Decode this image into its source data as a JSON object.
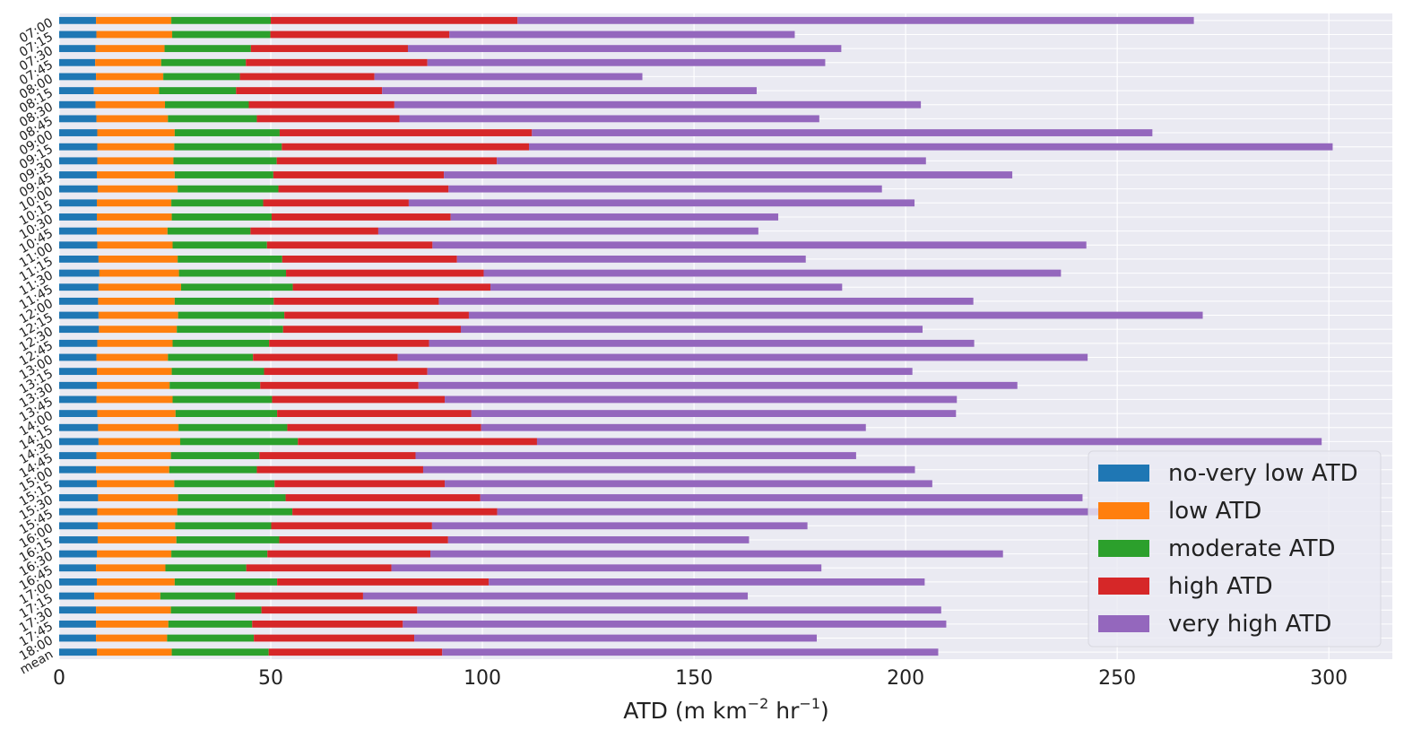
{
  "chart_data": {
    "type": "bar",
    "orientation": "horizontal",
    "stacked": true,
    "xlabel_main": "ATD (m km",
    "xlabel_sup1": "−2",
    "xlabel_mid": " hr",
    "xlabel_sup2": "−1",
    "xlabel_end": ")",
    "xlim": [
      0,
      315
    ],
    "xticks": [
      0,
      50,
      100,
      150,
      200,
      250,
      300
    ],
    "grid": true,
    "legend_position": "lower-right",
    "categories": [
      "07:00",
      "07:15",
      "07:30",
      "07:45",
      "08:00",
      "08:15",
      "08:30",
      "08:45",
      "09:00",
      "09:15",
      "09:30",
      "09:45",
      "10:00",
      "10:15",
      "10:30",
      "10:45",
      "11:00",
      "11:15",
      "11:30",
      "11:45",
      "12:00",
      "12:15",
      "12:30",
      "12:45",
      "13:00",
      "13:15",
      "13:30",
      "13:45",
      "14:00",
      "14:15",
      "14:30",
      "14:45",
      "15:00",
      "15:15",
      "15:30",
      "15:45",
      "16:00",
      "16:15",
      "16:30",
      "16:45",
      "17:00",
      "17:15",
      "17:30",
      "17:45",
      "18:00",
      "mean"
    ],
    "series": [
      {
        "name": "no-very low ATD",
        "color": "#1f77b4",
        "values": [
          8.7,
          8.8,
          8.6,
          8.5,
          8.7,
          8.2,
          8.6,
          8.8,
          9.0,
          9.0,
          9.0,
          8.9,
          9.1,
          8.9,
          8.9,
          8.9,
          9.0,
          9.3,
          9.5,
          9.3,
          9.2,
          9.3,
          9.4,
          9.0,
          8.8,
          8.9,
          8.9,
          8.8,
          9.0,
          9.2,
          9.3,
          8.8,
          8.7,
          8.9,
          9.2,
          9.0,
          9.1,
          9.1,
          8.9,
          8.7,
          8.9,
          8.3,
          8.7,
          8.7,
          8.7,
          8.9
        ]
      },
      {
        "name": "low ATD",
        "color": "#ff7f0e",
        "values": [
          17.8,
          17.9,
          16.3,
          15.6,
          15.9,
          15.4,
          16.4,
          16.9,
          18.3,
          18.2,
          18.0,
          18.4,
          18.9,
          17.6,
          17.7,
          16.7,
          17.8,
          18.7,
          18.8,
          19.5,
          18.1,
          18.8,
          18.4,
          17.8,
          16.9,
          17.7,
          17.2,
          18.0,
          18.5,
          19.0,
          19.3,
          17.6,
          17.3,
          18.3,
          18.9,
          18.9,
          18.3,
          18.6,
          17.6,
          16.4,
          18.4,
          15.6,
          17.7,
          17.1,
          16.8,
          17.7
        ]
      },
      {
        "name": "moderate ATD",
        "color": "#2ca02c",
        "values": [
          23.5,
          23.2,
          20.4,
          20.0,
          18.1,
          18.2,
          19.8,
          21.0,
          24.8,
          25.4,
          24.4,
          23.3,
          23.8,
          21.7,
          23.6,
          19.6,
          22.3,
          24.7,
          25.3,
          26.4,
          23.4,
          25.1,
          25.1,
          22.8,
          20.1,
          21.8,
          21.4,
          23.5,
          24.0,
          25.7,
          27.8,
          20.9,
          20.7,
          23.7,
          25.4,
          27.2,
          22.7,
          24.3,
          22.7,
          19.1,
          24.2,
          17.7,
          21.4,
          19.8,
          20.5,
          22.9
        ]
      },
      {
        "name": "high ATD",
        "color": "#d62728",
        "values": [
          58.3,
          42.3,
          37.1,
          42.9,
          31.8,
          34.5,
          34.4,
          33.7,
          59.6,
          58.4,
          52.0,
          40.3,
          40.2,
          34.4,
          42.3,
          30.2,
          39.1,
          41.3,
          46.7,
          46.7,
          39.0,
          43.6,
          42.0,
          37.8,
          34.2,
          38.6,
          37.4,
          40.8,
          45.9,
          45.8,
          56.5,
          36.9,
          39.3,
          40.2,
          46.0,
          48.4,
          38.0,
          39.9,
          38.5,
          34.3,
          50.0,
          30.2,
          36.8,
          35.6,
          37.9,
          41.0
        ]
      },
      {
        "name": "very high ATD",
        "color": "#9467bd",
        "values": [
          159.8,
          81.6,
          102.4,
          94.0,
          63.3,
          88.5,
          124.4,
          99.2,
          146.6,
          189.9,
          101.4,
          134.3,
          102.4,
          119.5,
          77.4,
          89.8,
          154.5,
          82.4,
          136.4,
          83.1,
          126.3,
          173.4,
          109.1,
          128.8,
          163.0,
          114.6,
          141.5,
          121.0,
          114.5,
          90.9,
          185.4,
          104.1,
          116.2,
          115.2,
          142.3,
          152.3,
          88.7,
          71.1,
          135.3,
          101.6,
          103.0,
          90.9,
          123.8,
          128.4,
          95.1,
          117.2
        ]
      }
    ]
  }
}
